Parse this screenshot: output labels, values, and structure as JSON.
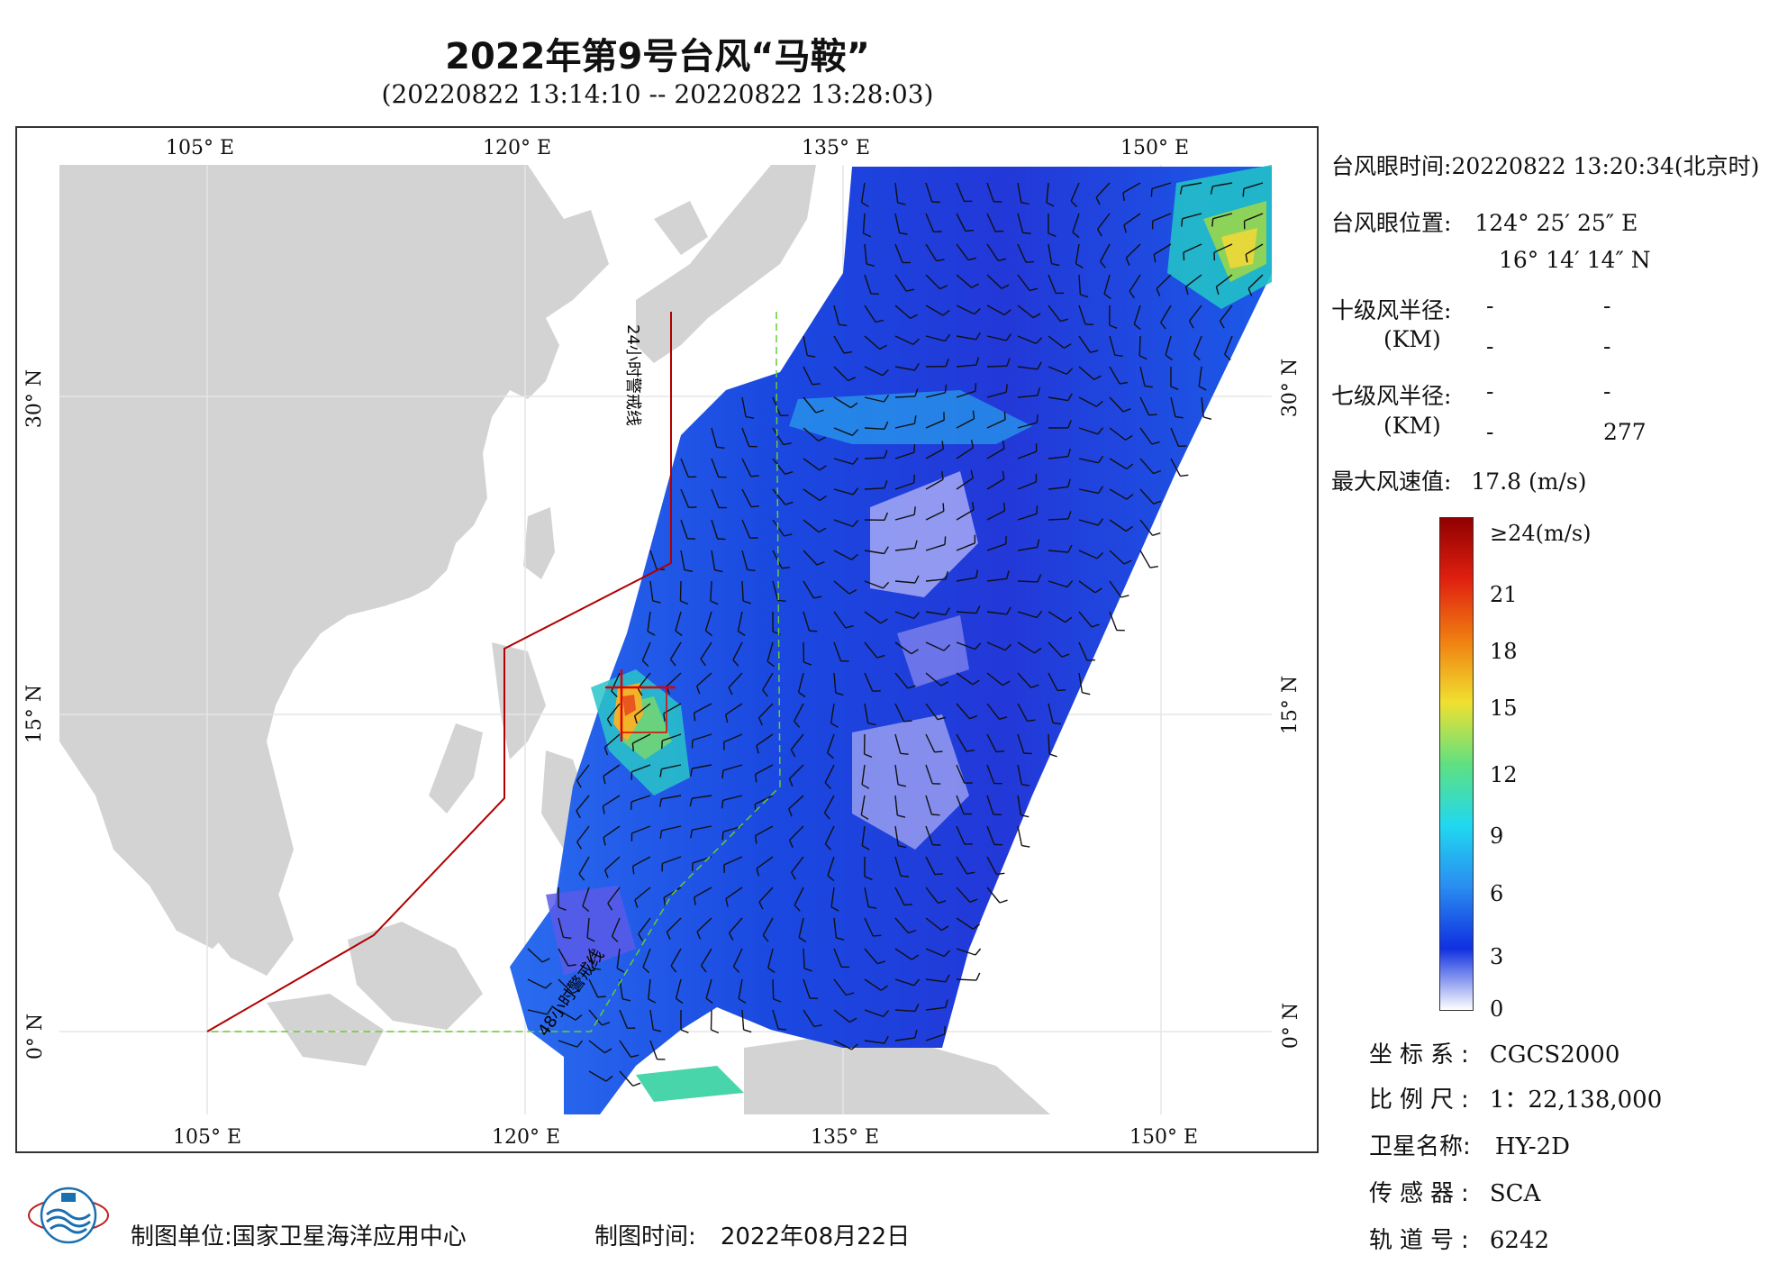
{
  "header": {
    "title": "2022年第9号台风“马鞍”",
    "subtitle": "(20220822 13:14:10 -- 20220822 13:28:03)"
  },
  "map": {
    "lon_labels": [
      "105° E",
      "120° E",
      "135° E",
      "150° E"
    ],
    "lat_labels": [
      "30° N",
      "15° N",
      "0° N"
    ],
    "warning_24h_label": "24小时警戒线",
    "warning_48h_label": "48小时警戒线",
    "colors": {
      "land": "#d3d3d3",
      "ocean": "#ffffff",
      "warning_24h": "#b00000",
      "warning_48h": "#66cc33",
      "typhoon_marker": "#e00000"
    }
  },
  "info": {
    "eye_time_label": "台风眼时间:",
    "eye_time_value": "20220822 13:20:34(北京时)",
    "eye_pos_label": "台风眼位置:",
    "eye_lon": "124° 25′ 25″ E",
    "eye_lat": "16° 14′ 14″ N",
    "r10_label": "十级风半径:",
    "r10_unit": "(KM)",
    "r10_values": [
      "-",
      "-",
      "-",
      "-"
    ],
    "r7_label": "七级风半径:",
    "r7_unit": "(KM)",
    "r7_values": [
      "-",
      "-",
      "-",
      "277"
    ],
    "max_wind_label": "最大风速值:",
    "max_wind_value": "17.8  (m/s)"
  },
  "colorbar": {
    "labels": [
      "≥24(m/s)",
      "21",
      "18",
      "15",
      "12",
      "9",
      "6",
      "3",
      "0"
    ],
    "stops": [
      "#ffffff",
      "#1030e0",
      "#2a8cf0",
      "#20d8f0",
      "#60e080",
      "#f0e030",
      "#f08010",
      "#e02010",
      "#900000"
    ]
  },
  "meta": {
    "crs_label": "坐标系:",
    "crs_value": "CGCS2000",
    "scale_label": "比例尺:",
    "scale_value": "1：22,138,000",
    "satellite_label": "卫星名称:",
    "satellite_value": "HY-2D",
    "sensor_label": "传感器:",
    "sensor_value": "SCA",
    "orbit_label": "轨道号:",
    "orbit_value": "6242"
  },
  "footer": {
    "unit_label": "制图单位:",
    "unit_value": "国家卫星海洋应用中心",
    "time_label": "制图时间:",
    "time_value": "2022年08月22日"
  }
}
